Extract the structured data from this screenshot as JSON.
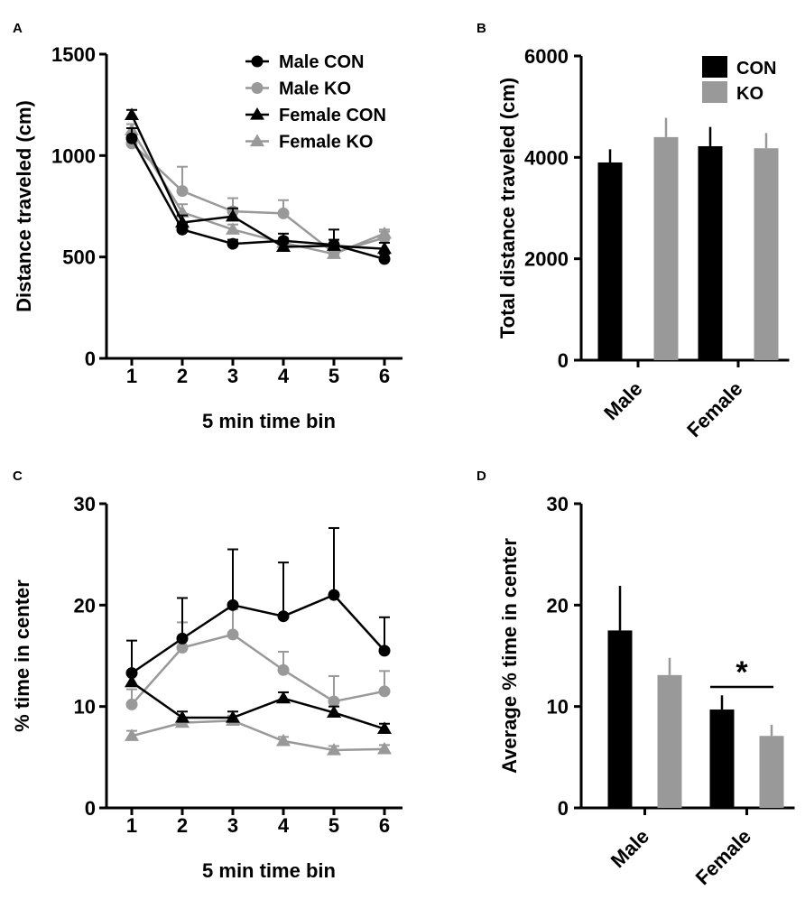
{
  "figure": {
    "background": "#ffffff"
  },
  "colors": {
    "con": "#000000",
    "ko": "#999999"
  },
  "chart_data": [
    {
      "panel": "A",
      "type": "line",
      "xlabel": "5 min time bin",
      "ylabel": "Distance traveled (cm)",
      "x": [
        1,
        2,
        3,
        4,
        5,
        6
      ],
      "xticks": [
        "1",
        "2",
        "3",
        "4",
        "5",
        "6"
      ],
      "xlim": [
        0.5,
        6.5
      ],
      "ylim": [
        0,
        1500
      ],
      "yticks": [
        "0",
        "500",
        "1000",
        "1500"
      ],
      "ytick_values": [
        0,
        500,
        1000,
        1500
      ],
      "legend_position": "top-right",
      "series": [
        {
          "name": "Male CON",
          "marker": "circle",
          "color": "#000000",
          "values": [
            1085,
            635,
            565,
            580,
            560,
            490
          ],
          "errors": [
            50,
            30,
            20,
            35,
            75,
            25
          ]
        },
        {
          "name": "Male KO",
          "marker": "circle",
          "color": "#999999",
          "values": [
            1060,
            825,
            725,
            715,
            520,
            595
          ],
          "errors": [
            40,
            120,
            65,
            65,
            30,
            30
          ]
        },
        {
          "name": "Female CON",
          "marker": "triangle",
          "color": "#000000",
          "values": [
            1200,
            670,
            700,
            550,
            555,
            540
          ],
          "errors": [
            25,
            35,
            40,
            25,
            30,
            30
          ]
        },
        {
          "name": "Female KO",
          "marker": "triangle",
          "color": "#999999",
          "values": [
            1125,
            720,
            635,
            570,
            515,
            615
          ],
          "errors": [
            30,
            40,
            25,
            25,
            25,
            20
          ]
        }
      ]
    },
    {
      "panel": "B",
      "type": "bar",
      "ylabel": "Total distance traveled (cm)",
      "categories": [
        "Male",
        "Female"
      ],
      "ylim": [
        0,
        6000
      ],
      "yticks": [
        "0",
        "2000",
        "4000",
        "6000"
      ],
      "ytick_values": [
        0,
        2000,
        4000,
        6000
      ],
      "legend_position": "top-right",
      "series": [
        {
          "name": "CON",
          "color": "#000000",
          "values": [
            3900,
            4220
          ],
          "errors": [
            260,
            380
          ]
        },
        {
          "name": "KO",
          "color": "#999999",
          "values": [
            4400,
            4180
          ],
          "errors": [
            380,
            300
          ]
        }
      ]
    },
    {
      "panel": "C",
      "type": "line",
      "xlabel": "5 min time bin",
      "ylabel": "% time in center",
      "x": [
        1,
        2,
        3,
        4,
        5,
        6
      ],
      "xticks": [
        "1",
        "2",
        "3",
        "4",
        "5",
        "6"
      ],
      "xlim": [
        0.5,
        6.5
      ],
      "ylim": [
        0,
        30
      ],
      "yticks": [
        "0",
        "10",
        "20",
        "30"
      ],
      "ytick_values": [
        0,
        10,
        20,
        30
      ],
      "series": [
        {
          "name": "Male CON",
          "marker": "circle",
          "color": "#000000",
          "values": [
            13.3,
            16.7,
            20.0,
            18.9,
            21.0,
            15.5
          ],
          "errors": [
            3.2,
            4.0,
            5.5,
            5.3,
            6.6,
            3.3
          ]
        },
        {
          "name": "Male KO",
          "marker": "circle",
          "color": "#999999",
          "values": [
            10.2,
            15.8,
            17.1,
            13.6,
            10.5,
            11.5
          ],
          "errors": [
            1.5,
            2.5,
            2.5,
            1.8,
            2.5,
            2.0
          ]
        },
        {
          "name": "Female CON",
          "marker": "triangle",
          "color": "#000000",
          "values": [
            12.4,
            8.9,
            8.9,
            10.8,
            9.4,
            7.8
          ],
          "errors": [
            1.0,
            0.6,
            0.6,
            0.6,
            0.6,
            0.5
          ]
        },
        {
          "name": "Female KO",
          "marker": "triangle",
          "color": "#999999",
          "values": [
            7.1,
            8.4,
            8.6,
            6.6,
            5.7,
            5.8
          ],
          "errors": [
            0.5,
            0.5,
            0.5,
            0.4,
            0.4,
            0.4
          ]
        }
      ]
    },
    {
      "panel": "D",
      "type": "bar",
      "ylabel": "Average % time in center",
      "categories": [
        "Male",
        "Female"
      ],
      "ylim": [
        0,
        30
      ],
      "yticks": [
        "0",
        "10",
        "20",
        "30"
      ],
      "ytick_values": [
        0,
        10,
        20,
        30
      ],
      "annotation": "*",
      "series": [
        {
          "name": "CON",
          "color": "#000000",
          "values": [
            17.5,
            9.7
          ],
          "errors": [
            4.4,
            1.4
          ]
        },
        {
          "name": "KO",
          "color": "#999999",
          "values": [
            13.1,
            7.1
          ],
          "errors": [
            1.7,
            1.1
          ]
        }
      ]
    }
  ]
}
